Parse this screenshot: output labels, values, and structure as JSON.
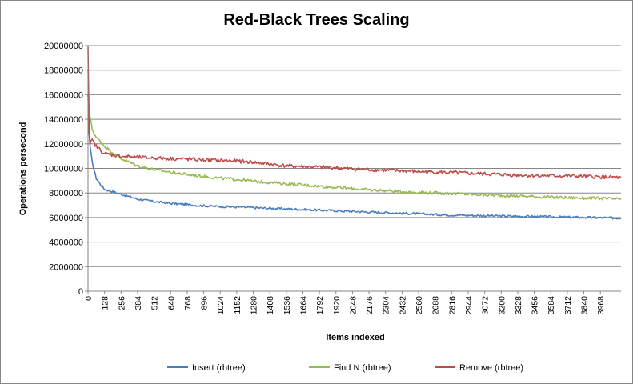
{
  "chart_data": {
    "type": "line",
    "title": "Red-Black Trees Scaling",
    "xlabel": "Items indexed",
    "ylabel": "Operations persecond",
    "xlim": [
      0,
      4128
    ],
    "ylim": [
      0,
      20000000
    ],
    "y_ticks": [
      "0",
      "2000000",
      "4000000",
      "6000000",
      "8000000",
      "10000000",
      "12000000",
      "14000000",
      "16000000",
      "18000000",
      "20000000"
    ],
    "x_ticks": [
      "0",
      "128",
      "256",
      "384",
      "512",
      "640",
      "768",
      "896",
      "1024",
      "1152",
      "1280",
      "1408",
      "1536",
      "1664",
      "1792",
      "1920",
      "2048",
      "2176",
      "2304",
      "2432",
      "2560",
      "2688",
      "2816",
      "2944",
      "3072",
      "3200",
      "3328",
      "3456",
      "3584",
      "3712",
      "3840",
      "3968"
    ],
    "grid": "horizontal major gridlines",
    "legend_position": "bottom",
    "series": [
      {
        "name": "Insert (rbtree)",
        "color": "#4a7ebb",
        "x": [
          0,
          8,
          16,
          32,
          64,
          96,
          128,
          192,
          256,
          384,
          512,
          640,
          768,
          896,
          1024,
          1152,
          1280,
          1408,
          1536,
          1664,
          1792,
          1920,
          2048,
          2176,
          2304,
          2432,
          2560,
          2688,
          2816,
          2944,
          3072,
          3200,
          3328,
          3456,
          3584,
          3712,
          3840,
          3968,
          4128
        ],
        "y": [
          16000000,
          13000000,
          11800000,
          10500000,
          9200000,
          8700000,
          8300000,
          8100000,
          7900000,
          7500000,
          7300000,
          7150000,
          7050000,
          6950000,
          6900000,
          6850000,
          6800000,
          6750000,
          6700000,
          6650000,
          6600000,
          6550000,
          6500000,
          6450000,
          6400000,
          6350000,
          6300000,
          6250000,
          6200000,
          6180000,
          6150000,
          6120000,
          6100000,
          6080000,
          6050000,
          6030000,
          6000000,
          5980000,
          5950000
        ]
      },
      {
        "name": "Find N (rbtree)",
        "color": "#98b954",
        "x": [
          0,
          8,
          16,
          32,
          64,
          96,
          128,
          192,
          256,
          384,
          512,
          640,
          768,
          896,
          1024,
          1152,
          1280,
          1408,
          1536,
          1664,
          1792,
          1920,
          2048,
          2176,
          2304,
          2432,
          2560,
          2688,
          2816,
          2944,
          3072,
          3200,
          3328,
          3456,
          3584,
          3712,
          3840,
          3968,
          4128
        ],
        "y": [
          18000000,
          15000000,
          14200000,
          13200000,
          12500000,
          12200000,
          11800000,
          11300000,
          10800000,
          10200000,
          9900000,
          9700000,
          9500000,
          9350000,
          9200000,
          9100000,
          8950000,
          8850000,
          8750000,
          8650000,
          8550000,
          8450000,
          8350000,
          8250000,
          8200000,
          8100000,
          8050000,
          8000000,
          7950000,
          7900000,
          7850000,
          7800000,
          7750000,
          7700000,
          7650000,
          7620000,
          7580000,
          7550000,
          7500000
        ]
      },
      {
        "name": "Remove (rbtree)",
        "color": "#be4b48",
        "x": [
          0,
          8,
          16,
          32,
          64,
          96,
          128,
          192,
          256,
          384,
          512,
          640,
          768,
          896,
          1024,
          1152,
          1280,
          1408,
          1536,
          1664,
          1792,
          1920,
          2048,
          2176,
          2304,
          2432,
          2560,
          2688,
          2816,
          2944,
          3072,
          3200,
          3328,
          3456,
          3584,
          3712,
          3840,
          3968,
          4128
        ],
        "y": [
          20000000,
          13000000,
          12000000,
          12300000,
          11800000,
          11500000,
          11200000,
          11100000,
          11000000,
          10900000,
          10850000,
          10800000,
          10750000,
          10700000,
          10650000,
          10600000,
          10500000,
          10350000,
          10200000,
          10150000,
          10100000,
          10050000,
          9950000,
          9900000,
          9850000,
          9800000,
          9750000,
          9700000,
          9650000,
          9600000,
          9550000,
          9500000,
          9450000,
          9420000,
          9400000,
          9380000,
          9350000,
          9300000,
          9250000
        ]
      }
    ]
  }
}
